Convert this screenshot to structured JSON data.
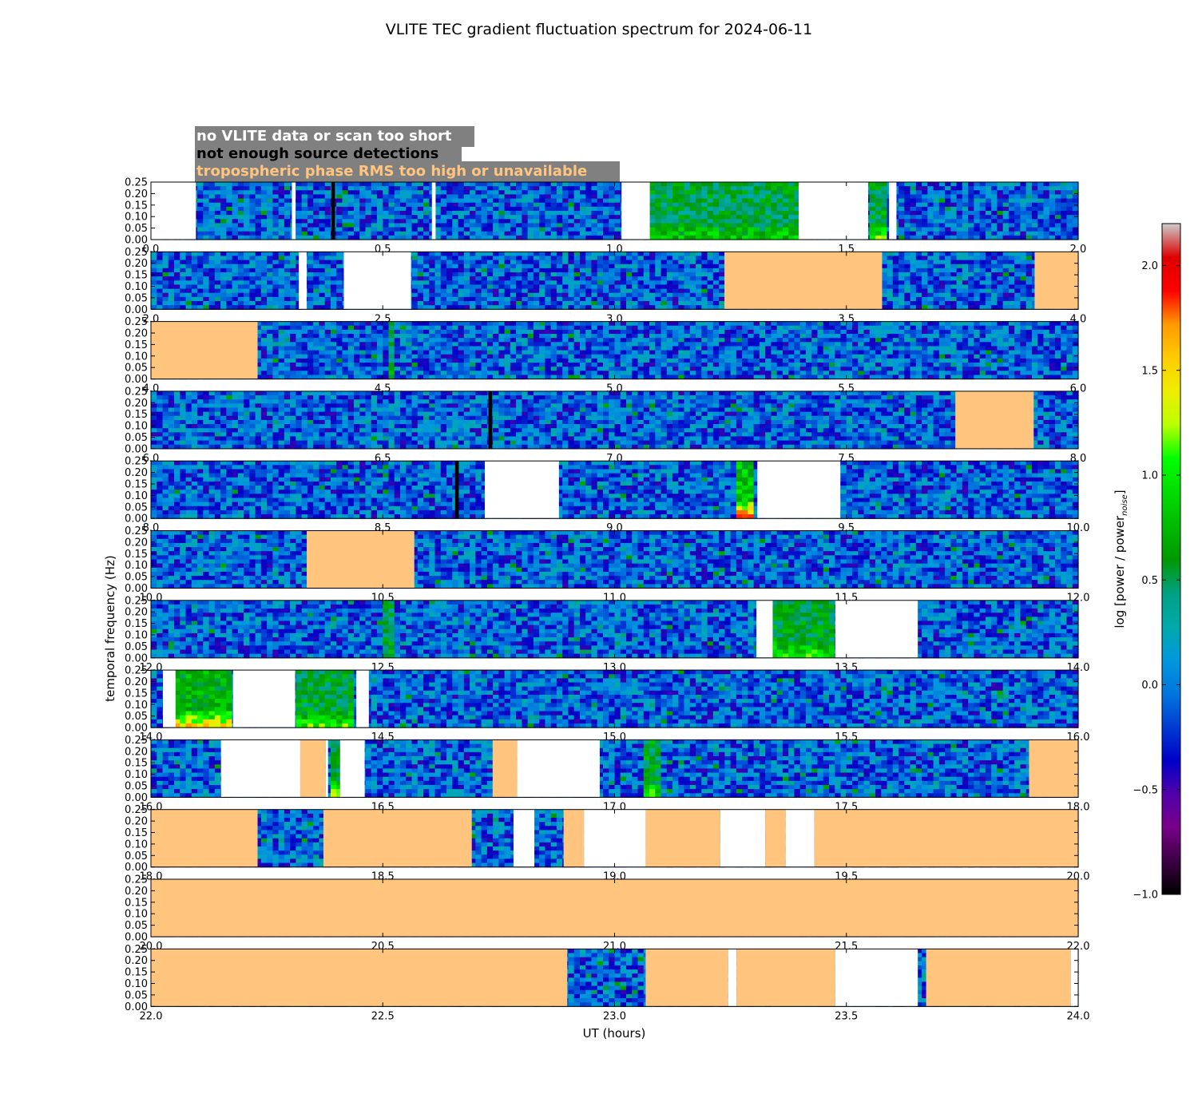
{
  "chart_data": {
    "type": "heatmap",
    "title": "VLITE TEC gradient fluctuation spectrum for 2024-06-11",
    "xlabel": "UT (hours)",
    "ylabel": "temporal frequency (Hz)",
    "colorbar_label": "log [power / power",
    "colorbar_label_sub": "noise",
    "colorbar_label_close": "]",
    "colorbar_range": [
      -1.0,
      2.2
    ],
    "colorbar_ticks": [
      {
        "value": -1.0,
        "label": "−1.0"
      },
      {
        "value": -0.5,
        "label": "−0.5"
      },
      {
        "value": 0.0,
        "label": "0.0"
      },
      {
        "value": 0.5,
        "label": "0.5"
      },
      {
        "value": 1.0,
        "label": "1.0"
      },
      {
        "value": 1.5,
        "label": "1.5"
      },
      {
        "value": 2.0,
        "label": "2.0"
      }
    ],
    "colormap": "nipy_spectral",
    "ylim": [
      0.0,
      0.25
    ],
    "ytick_labels": [
      "0.00",
      "0.05",
      "0.10",
      "0.15",
      "0.20",
      "0.25"
    ],
    "ytick_values": [
      0.0,
      0.05,
      0.1,
      0.15,
      0.2,
      0.25
    ],
    "legend": [
      {
        "text": "no VLITE data or scan too short",
        "color": "#ffffff",
        "meaning": "nodata"
      },
      {
        "text": "not enough source detections",
        "color": "#000000",
        "meaning": "nodet"
      },
      {
        "text": "tropospheric phase RMS too high or unavailable",
        "color": "#ffc57f",
        "meaning": "trop"
      }
    ],
    "status_colors": {
      "nodata": "#ffffff",
      "nodet": "#000000",
      "trop": "#ffc57f"
    },
    "panels": [
      {
        "xlim": [
          0,
          2
        ],
        "xticks": [
          {
            "value": 0.0,
            "label": "0.0"
          },
          {
            "value": 0.5,
            "label": "0.5"
          },
          {
            "value": 1.0,
            "label": "1.0"
          },
          {
            "value": 1.5,
            "label": "1.5"
          },
          {
            "value": 2.0,
            "label": "2.0"
          }
        ],
        "segments": [
          {
            "start": 0.0,
            "end": 0.097,
            "status": "nodata"
          },
          {
            "start": 0.304,
            "end": 0.312,
            "status": "nodata"
          },
          {
            "start": 0.389,
            "end": 0.397,
            "status": "nodet"
          },
          {
            "start": 0.606,
            "end": 0.614,
            "status": "nodata"
          },
          {
            "start": 1.015,
            "end": 1.076,
            "status": "nodata"
          },
          {
            "start": 1.397,
            "end": 1.547,
            "status": "nodata"
          },
          {
            "start": 1.592,
            "end": 1.608,
            "status": "nodata"
          }
        ],
        "hot": [
          {
            "start": 1.076,
            "end": 1.397,
            "level": 0.75
          },
          {
            "start": 1.547,
            "end": 1.592,
            "level": 0.9
          }
        ]
      },
      {
        "xlim": [
          2,
          4
        ],
        "xticks": [
          {
            "value": 2.0,
            "label": "2.0"
          },
          {
            "value": 2.5,
            "label": "2.5"
          },
          {
            "value": 3.0,
            "label": "3.0"
          },
          {
            "value": 3.5,
            "label": "3.5"
          },
          {
            "value": 4.0,
            "label": "4.0"
          }
        ],
        "segments": [
          {
            "start": 2.319,
            "end": 2.336,
            "status": "nodata"
          },
          {
            "start": 2.416,
            "end": 2.561,
            "status": "nodata"
          },
          {
            "start": 3.237,
            "end": 3.577,
            "status": "trop"
          },
          {
            "start": 3.906,
            "end": 4.0,
            "status": "trop"
          }
        ],
        "hot": []
      },
      {
        "xlim": [
          4,
          6
        ],
        "xticks": [
          {
            "value": 4.0,
            "label": "4.0"
          },
          {
            "value": 4.5,
            "label": "4.5"
          },
          {
            "value": 5.0,
            "label": "5.0"
          },
          {
            "value": 5.5,
            "label": "5.5"
          },
          {
            "value": 6.0,
            "label": "6.0"
          }
        ],
        "segments": [
          {
            "start": 4.0,
            "end": 4.23,
            "status": "trop"
          }
        ],
        "hot": [
          {
            "start": 4.51,
            "end": 4.53,
            "level": 0.7
          }
        ]
      },
      {
        "xlim": [
          6,
          8
        ],
        "xticks": [
          {
            "value": 6.0,
            "label": "6.0"
          },
          {
            "value": 6.5,
            "label": "6.5"
          },
          {
            "value": 7.0,
            "label": "7.0"
          },
          {
            "value": 7.5,
            "label": "7.5"
          },
          {
            "value": 8.0,
            "label": "8.0"
          }
        ],
        "segments": [
          {
            "start": 6.728,
            "end": 6.736,
            "status": "nodet"
          },
          {
            "start": 7.735,
            "end": 7.904,
            "status": "trop"
          }
        ],
        "hot": []
      },
      {
        "xlim": [
          8,
          10
        ],
        "xticks": [
          {
            "value": 8.0,
            "label": "8.0"
          },
          {
            "value": 8.5,
            "label": "8.5"
          },
          {
            "value": 9.0,
            "label": "9.0"
          },
          {
            "value": 9.5,
            "label": "9.5"
          },
          {
            "value": 10.0,
            "label": "10.0"
          }
        ],
        "segments": [
          {
            "start": 8.656,
            "end": 8.664,
            "status": "nodet"
          },
          {
            "start": 8.72,
            "end": 8.88,
            "status": "nodata"
          },
          {
            "start": 9.308,
            "end": 9.487,
            "status": "nodata"
          }
        ],
        "hot": [
          {
            "start": 9.26,
            "end": 9.305,
            "level": 1.6
          }
        ]
      },
      {
        "xlim": [
          10,
          12
        ],
        "xticks": [
          {
            "value": 10.0,
            "label": "10.0"
          },
          {
            "value": 10.5,
            "label": "10.5"
          },
          {
            "value": 11.0,
            "label": "11.0"
          },
          {
            "value": 11.5,
            "label": "11.5"
          },
          {
            "value": 12.0,
            "label": "12.0"
          }
        ],
        "segments": [
          {
            "start": 10.336,
            "end": 10.568,
            "status": "trop"
          }
        ],
        "hot": []
      },
      {
        "xlim": [
          12,
          14
        ],
        "xticks": [
          {
            "value": 12.0,
            "label": "12.0"
          },
          {
            "value": 12.5,
            "label": "12.5"
          },
          {
            "value": 13.0,
            "label": "13.0"
          },
          {
            "value": 13.5,
            "label": "13.5"
          },
          {
            "value": 14.0,
            "label": "14.0"
          }
        ],
        "segments": [
          {
            "start": 13.306,
            "end": 13.341,
            "status": "nodata"
          },
          {
            "start": 13.476,
            "end": 13.654,
            "status": "nodata"
          }
        ],
        "hot": [
          {
            "start": 13.341,
            "end": 13.476,
            "level": 0.9
          },
          {
            "start": 12.5,
            "end": 12.52,
            "level": 0.7
          }
        ]
      },
      {
        "xlim": [
          14,
          16
        ],
        "xticks": [
          {
            "value": 14.0,
            "label": "14.0"
          },
          {
            "value": 14.5,
            "label": "14.5"
          },
          {
            "value": 15.0,
            "label": "15.0"
          },
          {
            "value": 15.5,
            "label": "15.5"
          },
          {
            "value": 16.0,
            "label": "16.0"
          }
        ],
        "segments": [
          {
            "start": 14.026,
            "end": 14.053,
            "status": "nodata"
          },
          {
            "start": 14.177,
            "end": 14.311,
            "status": "nodata"
          },
          {
            "start": 14.443,
            "end": 14.47,
            "status": "nodata"
          }
        ],
        "hot": [
          {
            "start": 14.053,
            "end": 14.177,
            "level": 1.3
          },
          {
            "start": 14.311,
            "end": 14.443,
            "level": 0.9
          }
        ]
      },
      {
        "xlim": [
          16,
          18
        ],
        "xticks": [
          {
            "value": 16.0,
            "label": "16.0"
          },
          {
            "value": 16.5,
            "label": "16.5"
          },
          {
            "value": 17.0,
            "label": "17.0"
          },
          {
            "value": 17.5,
            "label": "17.5"
          },
          {
            "value": 18.0,
            "label": "18.0"
          }
        ],
        "segments": [
          {
            "start": 16.151,
            "end": 16.322,
            "status": "nodata"
          },
          {
            "start": 16.322,
            "end": 16.377,
            "status": "trop"
          },
          {
            "start": 16.377,
            "end": 16.382,
            "status": "nodata"
          },
          {
            "start": 16.408,
            "end": 16.461,
            "status": "nodata"
          },
          {
            "start": 16.737,
            "end": 16.79,
            "status": "trop"
          },
          {
            "start": 16.79,
            "end": 16.968,
            "status": "nodata"
          },
          {
            "start": 17.894,
            "end": 18.0,
            "status": "trop"
          }
        ],
        "hot": [
          {
            "start": 16.382,
            "end": 16.408,
            "level": 1.0
          },
          {
            "start": 17.06,
            "end": 17.1,
            "level": 0.9
          }
        ]
      },
      {
        "xlim": [
          18,
          20
        ],
        "xticks": [
          {
            "value": 18.0,
            "label": "18.0"
          },
          {
            "value": 18.5,
            "label": "18.5"
          },
          {
            "value": 19.0,
            "label": "19.0"
          },
          {
            "value": 19.5,
            "label": "19.5"
          },
          {
            "value": 20.0,
            "label": "20.0"
          }
        ],
        "segments": [
          {
            "start": 18.0,
            "end": 18.23,
            "status": "trop"
          },
          {
            "start": 18.372,
            "end": 18.692,
            "status": "trop"
          },
          {
            "start": 18.782,
            "end": 18.827,
            "status": "nodata"
          },
          {
            "start": 18.89,
            "end": 18.934,
            "status": "trop"
          },
          {
            "start": 18.934,
            "end": 19.067,
            "status": "nodata"
          },
          {
            "start": 19.067,
            "end": 19.228,
            "status": "trop"
          },
          {
            "start": 19.228,
            "end": 19.325,
            "status": "nodata"
          },
          {
            "start": 19.325,
            "end": 19.369,
            "status": "trop"
          },
          {
            "start": 19.369,
            "end": 19.431,
            "status": "nodata"
          },
          {
            "start": 19.431,
            "end": 20.0,
            "status": "trop"
          }
        ],
        "hot": []
      },
      {
        "xlim": [
          20,
          22
        ],
        "xticks": [
          {
            "value": 20.0,
            "label": "20.0"
          },
          {
            "value": 20.5,
            "label": "20.5"
          },
          {
            "value": 21.0,
            "label": "21.0"
          },
          {
            "value": 21.5,
            "label": "21.5"
          },
          {
            "value": 22.0,
            "label": "22.0"
          }
        ],
        "segments": [
          {
            "start": 20.0,
            "end": 22.0,
            "status": "trop"
          }
        ],
        "hot": []
      },
      {
        "xlim": [
          22,
          24
        ],
        "xticks": [
          {
            "value": 22.0,
            "label": "22.0"
          },
          {
            "value": 22.5,
            "label": "22.5"
          },
          {
            "value": 23.0,
            "label": "23.0"
          },
          {
            "value": 23.5,
            "label": "23.5"
          },
          {
            "value": 24.0,
            "label": "24.0"
          }
        ],
        "segments": [
          {
            "start": 22.0,
            "end": 22.898,
            "status": "trop"
          },
          {
            "start": 23.067,
            "end": 23.245,
            "status": "trop"
          },
          {
            "start": 23.245,
            "end": 23.263,
            "status": "nodata"
          },
          {
            "start": 23.263,
            "end": 23.476,
            "status": "trop"
          },
          {
            "start": 23.476,
            "end": 23.654,
            "status": "nodata"
          },
          {
            "start": 23.672,
            "end": 23.984,
            "status": "trop"
          },
          {
            "start": 23.984,
            "end": 24.0,
            "status": "nodata"
          }
        ],
        "hot": []
      }
    ]
  }
}
